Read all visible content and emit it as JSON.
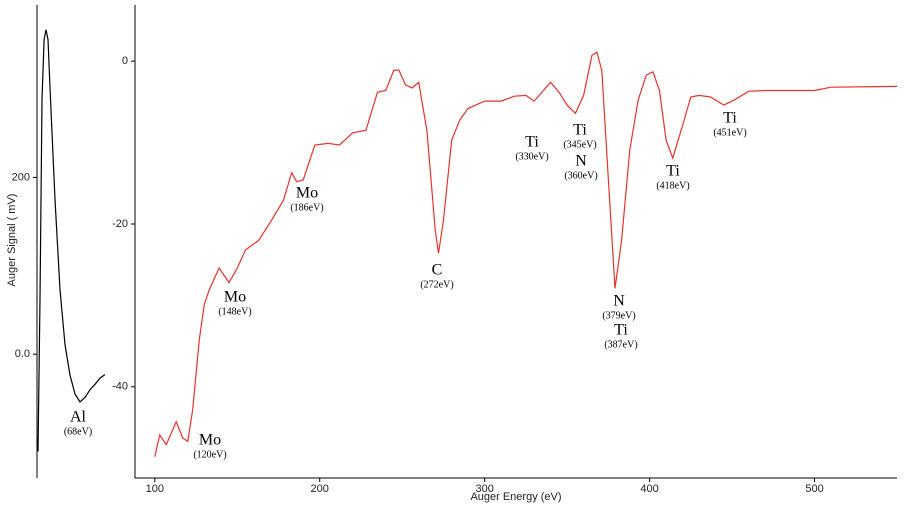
{
  "chart_data": [
    {
      "type": "line",
      "y_label": "Auger Signal ( mV)",
      "xlim": [
        35,
        110
      ],
      "ylim": [
        -140,
        395
      ],
      "yticks": [
        {
          "value": 0,
          "label": "0.0"
        },
        200
      ],
      "x": [
        35.8,
        37.3,
        38.8,
        40.4,
        41.9,
        43.4,
        45,
        48.8,
        52.6,
        56.4,
        60.2,
        64.1,
        67.9,
        71.7,
        75.6,
        79.4,
        83.2,
        87
      ],
      "series": [
        {
          "color": "#000000",
          "values": [
            -110,
            62,
            288,
            356,
            367,
            356,
            299,
            175,
            73,
            11,
            -23,
            -45,
            -54,
            -49,
            -40,
            -34,
            -27,
            -23
          ]
        }
      ],
      "annotations": [
        {
          "element": "Al",
          "energy": "(68eV)"
        }
      ]
    },
    {
      "type": "line",
      "x_label": "Auger Energy (eV)",
      "xlim": [
        88,
        550
      ],
      "ylim": [
        -51.2,
        6.9
      ],
      "xticks": [
        100,
        200,
        300,
        400,
        500
      ],
      "yticks": [
        0,
        -20,
        -40
      ],
      "x": [
        100,
        103,
        107,
        113,
        117,
        120,
        123,
        127,
        130,
        133,
        139,
        145,
        150,
        155,
        163,
        170,
        178,
        183,
        186,
        190,
        197,
        205,
        212,
        220,
        228,
        235,
        240,
        245,
        248,
        252,
        256,
        260,
        265,
        270,
        272,
        275,
        280,
        285,
        290,
        300,
        310,
        318,
        325,
        330,
        340,
        345,
        350,
        355,
        360,
        365,
        368,
        371,
        375,
        379,
        383,
        388,
        393,
        398,
        402,
        406,
        410,
        414,
        420,
        425,
        430,
        437,
        445,
        451,
        460,
        470,
        500,
        510,
        550
      ],
      "series": [
        {
          "color": "#e8322c",
          "values": [
            -48.6,
            -45.9,
            -47.1,
            -44.3,
            -46.3,
            -46.7,
            -42.8,
            -34.2,
            -29.9,
            -28.1,
            -25.4,
            -27.2,
            -25.4,
            -23.2,
            -22,
            -19.8,
            -17.1,
            -13.7,
            -14.8,
            -14.6,
            -10.3,
            -10.1,
            -10.3,
            -8.8,
            -8.5,
            -3.8,
            -3.6,
            -1.1,
            -1.1,
            -2.9,
            -3.3,
            -2.6,
            -8.5,
            -20.7,
            -23.6,
            -19.6,
            -9.7,
            -7.2,
            -5.8,
            -4.9,
            -4.9,
            -4.3,
            -4.2,
            -4.9,
            -2.6,
            -3.8,
            -5.4,
            -6.4,
            -4.2,
            0.7,
            1.1,
            -1.1,
            -14.6,
            -27.9,
            -22,
            -10.9,
            -4.8,
            -1.7,
            -1.3,
            -3.6,
            -9.7,
            -11.9,
            -7.9,
            -4.4,
            -4.2,
            -4.4,
            -5.4,
            -4.8,
            -3.7,
            -3.6,
            -3.6,
            -3.2,
            -3.1
          ]
        }
      ],
      "annotations": [
        {
          "element": "Mo",
          "energy": "(120eV)"
        },
        {
          "element": "Mo",
          "energy": "(148eV)"
        },
        {
          "element": "Mo",
          "energy": "(186eV)"
        },
        {
          "element": "C",
          "energy": "(272eV)"
        },
        {
          "element": "Ti",
          "energy": "(330eV)"
        },
        {
          "element": "Ti",
          "energy": "(345eV)"
        },
        {
          "element": "N",
          "energy": "(360eV)"
        },
        {
          "element": "N",
          "energy": "(379eV)"
        },
        {
          "element": "Ti",
          "energy": "(387eV)"
        },
        {
          "element": "Ti",
          "energy": "(418eV)"
        },
        {
          "element": "Ti",
          "energy": "(451eV)"
        }
      ]
    }
  ]
}
